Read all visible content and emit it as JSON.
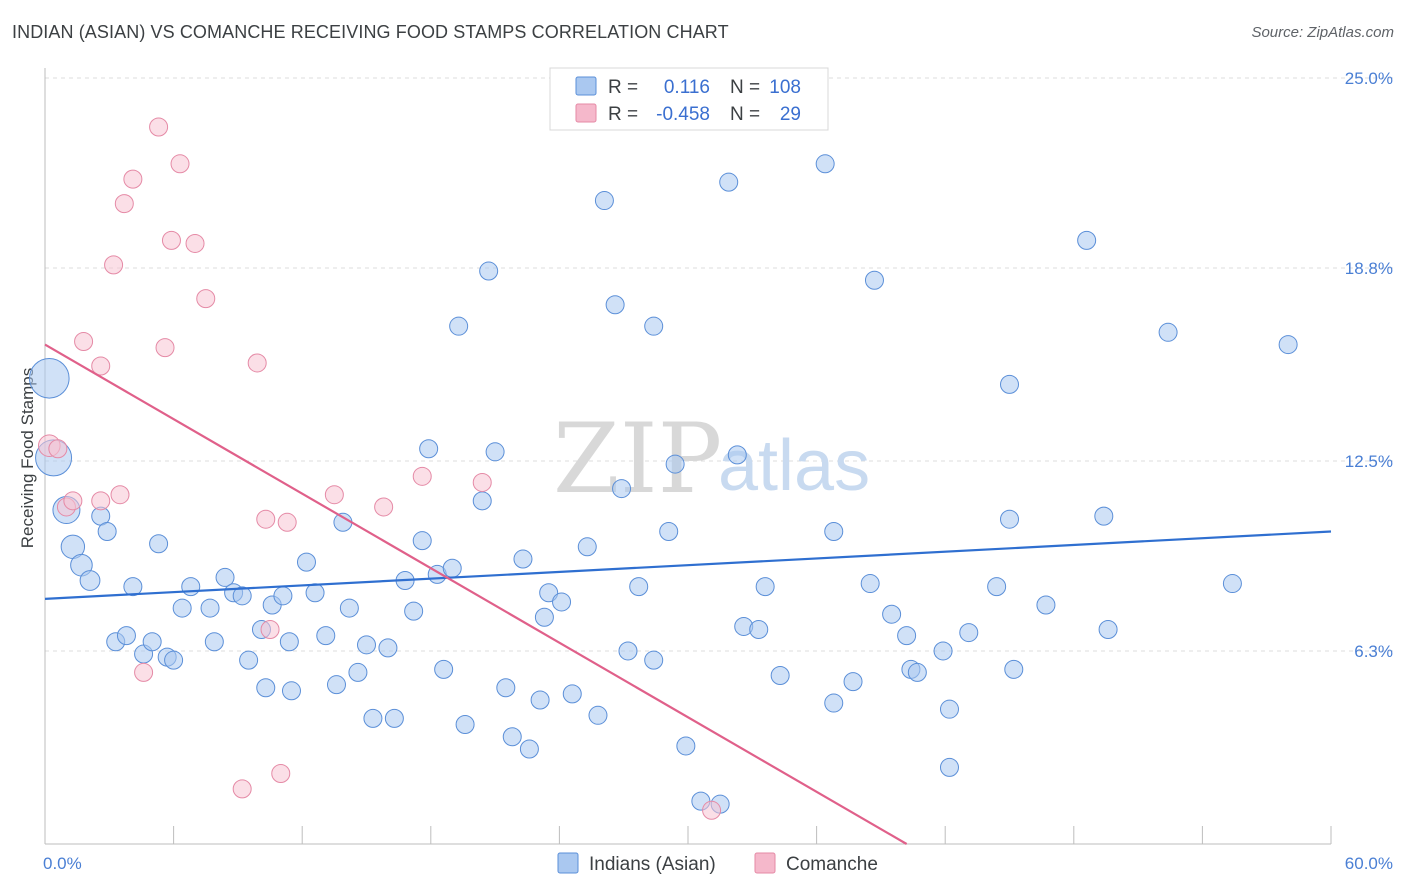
{
  "header": {
    "title": "INDIAN (ASIAN) VS COMANCHE RECEIVING FOOD STAMPS CORRELATION CHART",
    "source": "Source: ZipAtlas.com"
  },
  "watermark": {
    "zip": "ZIP",
    "atlas": "atlas"
  },
  "legend_top": {
    "rows": [
      {
        "r_label": "R =",
        "r_value": "0.116",
        "n_label": "N =",
        "n_value": "108",
        "color": "#aac8f0"
      },
      {
        "r_label": "R =",
        "r_value": "-0.458",
        "n_label": "N =",
        "n_value": "29",
        "color": "#f5b8cb"
      }
    ]
  },
  "colors": {
    "indians_fill": "#aac8f0",
    "indians_stroke": "#5b8fd8",
    "indians_line": "#2f6fd0",
    "comanche_fill": "#f8c4d4",
    "comanche_stroke": "#e58aa6",
    "comanche_line": "#e0608a",
    "grid": "#dcdcdc",
    "axis": "#bdbdbd"
  },
  "chart_data": {
    "type": "scatter",
    "title": "INDIAN (ASIAN) VS COMANCHE RECEIVING FOOD STAMPS CORRELATION CHART",
    "xlabel": "",
    "ylabel": "Receiving Food Stamps",
    "xlim": [
      0,
      60
    ],
    "ylim": [
      0,
      25
    ],
    "x_tick_labels": [
      "0.0%",
      "60.0%"
    ],
    "y_ticks": [
      6.3,
      12.5,
      18.8,
      25.0
    ],
    "y_tick_labels": [
      "6.3%",
      "12.5%",
      "18.8%",
      "25.0%"
    ],
    "grid": true,
    "legend_placement": "top-center",
    "series": [
      {
        "name": "Indians (Asian)",
        "r": 0.116,
        "n": 108,
        "trend": {
          "x": [
            0,
            60
          ],
          "y": [
            8.0,
            10.2
          ]
        },
        "points": [
          [
            0.2,
            15.2,
            2.2
          ],
          [
            0.4,
            12.6,
            2.0
          ],
          [
            1.0,
            10.9,
            1.5
          ],
          [
            1.3,
            9.7,
            1.3
          ],
          [
            1.7,
            9.1,
            1.2
          ],
          [
            2.1,
            8.6,
            1.1
          ],
          [
            2.6,
            10.7,
            1.0
          ],
          [
            2.9,
            10.2,
            1.0
          ],
          [
            3.3,
            6.6,
            1.0
          ],
          [
            3.8,
            6.8,
            1.0
          ],
          [
            4.1,
            8.4,
            1.0
          ],
          [
            4.6,
            6.2,
            1.0
          ],
          [
            5.0,
            6.6,
            1.0
          ],
          [
            5.3,
            9.8,
            1.0
          ],
          [
            5.7,
            6.1,
            1.0
          ],
          [
            6.0,
            6.0,
            1.0
          ],
          [
            6.4,
            7.7,
            1.0
          ],
          [
            6.8,
            8.4,
            1.0
          ],
          [
            7.7,
            7.7,
            1.0
          ],
          [
            7.9,
            6.6,
            1.0
          ],
          [
            8.4,
            8.7,
            1.0
          ],
          [
            8.8,
            8.2,
            1.0
          ],
          [
            9.2,
            8.1,
            1.0
          ],
          [
            9.5,
            6.0,
            1.0
          ],
          [
            10.1,
            7.0,
            1.0
          ],
          [
            10.3,
            5.1,
            1.0
          ],
          [
            10.6,
            7.8,
            1.0
          ],
          [
            11.1,
            8.1,
            1.0
          ],
          [
            11.4,
            6.6,
            1.0
          ],
          [
            11.5,
            5.0,
            1.0
          ],
          [
            12.2,
            9.2,
            1.0
          ],
          [
            12.6,
            8.2,
            1.0
          ],
          [
            13.1,
            6.8,
            1.0
          ],
          [
            13.6,
            5.2,
            1.0
          ],
          [
            13.9,
            10.5,
            1.0
          ],
          [
            14.2,
            7.7,
            1.0
          ],
          [
            14.6,
            5.6,
            1.0
          ],
          [
            15.0,
            6.5,
            1.0
          ],
          [
            15.3,
            4.1,
            1.0
          ],
          [
            16.0,
            6.4,
            1.0
          ],
          [
            16.3,
            4.1,
            1.0
          ],
          [
            16.8,
            8.6,
            1.0
          ],
          [
            17.2,
            7.6,
            1.0
          ],
          [
            17.6,
            9.9,
            1.0
          ],
          [
            17.9,
            12.9,
            1.0
          ],
          [
            18.3,
            8.8,
            1.0
          ],
          [
            18.6,
            5.7,
            1.0
          ],
          [
            19.0,
            9.0,
            1.0
          ],
          [
            19.3,
            16.9,
            1.0
          ],
          [
            19.6,
            3.9,
            1.0
          ],
          [
            20.4,
            11.2,
            1.0
          ],
          [
            20.7,
            18.7,
            1.0
          ],
          [
            21.0,
            12.8,
            1.0
          ],
          [
            21.5,
            5.1,
            1.0
          ],
          [
            21.8,
            3.5,
            1.0
          ],
          [
            22.3,
            9.3,
            1.0
          ],
          [
            22.6,
            3.1,
            1.0
          ],
          [
            23.1,
            4.7,
            1.0
          ],
          [
            23.3,
            7.4,
            1.0
          ],
          [
            23.5,
            8.2,
            1.0
          ],
          [
            24.1,
            7.9,
            1.0
          ],
          [
            24.6,
            4.9,
            1.0
          ],
          [
            25.3,
            9.7,
            1.0
          ],
          [
            25.8,
            4.2,
            1.0
          ],
          [
            26.1,
            21.0,
            1.0
          ],
          [
            26.6,
            17.6,
            1.0
          ],
          [
            26.9,
            11.6,
            1.0
          ],
          [
            27.2,
            6.3,
            1.0
          ],
          [
            27.7,
            8.4,
            1.0
          ],
          [
            28.4,
            16.9,
            1.0
          ],
          [
            28.4,
            6.0,
            1.0
          ],
          [
            29.1,
            10.2,
            1.0
          ],
          [
            29.4,
            12.4,
            1.0
          ],
          [
            29.9,
            3.2,
            1.0
          ],
          [
            30.6,
            1.4,
            1.0
          ],
          [
            31.5,
            1.3,
            1.0
          ],
          [
            31.9,
            21.6,
            1.0
          ],
          [
            32.3,
            12.7,
            1.0
          ],
          [
            32.6,
            7.1,
            1.0
          ],
          [
            33.3,
            7.0,
            1.0
          ],
          [
            33.6,
            8.4,
            1.0
          ],
          [
            34.3,
            5.5,
            1.0
          ],
          [
            36.4,
            22.2,
            1.0
          ],
          [
            36.8,
            10.2,
            1.0
          ],
          [
            36.8,
            4.6,
            1.0
          ],
          [
            37.7,
            5.3,
            1.0
          ],
          [
            38.5,
            8.5,
            1.0
          ],
          [
            38.7,
            18.4,
            1.0
          ],
          [
            39.5,
            7.5,
            1.0
          ],
          [
            40.2,
            6.8,
            1.0
          ],
          [
            40.4,
            5.7,
            1.0
          ],
          [
            40.7,
            5.6,
            1.0
          ],
          [
            41.9,
            6.3,
            1.0
          ],
          [
            42.2,
            4.4,
            1.0
          ],
          [
            42.2,
            2.5,
            1.0
          ],
          [
            43.1,
            6.9,
            1.0
          ],
          [
            44.4,
            8.4,
            1.0
          ],
          [
            45.0,
            15.0,
            1.0
          ],
          [
            45.0,
            10.6,
            1.0
          ],
          [
            45.2,
            5.7,
            1.0
          ],
          [
            46.7,
            7.8,
            1.0
          ],
          [
            48.6,
            19.7,
            1.0
          ],
          [
            49.4,
            10.7,
            1.0
          ],
          [
            49.6,
            7.0,
            1.0
          ],
          [
            52.4,
            16.7,
            1.0
          ],
          [
            55.4,
            8.5,
            1.0
          ],
          [
            58.0,
            16.3,
            1.0
          ]
        ]
      },
      {
        "name": "Comanche",
        "r": -0.458,
        "n": 29,
        "trend": {
          "x": [
            0,
            40.2
          ],
          "y": [
            16.3,
            0
          ]
        },
        "points": [
          [
            0.2,
            13.0,
            1.2
          ],
          [
            0.6,
            12.9,
            1.0
          ],
          [
            1.0,
            11.0,
            1.0
          ],
          [
            1.3,
            11.2,
            1.0
          ],
          [
            1.8,
            16.4,
            1.0
          ],
          [
            2.6,
            11.2,
            1.0
          ],
          [
            2.6,
            15.6,
            1.0
          ],
          [
            3.2,
            18.9,
            1.0
          ],
          [
            3.5,
            11.4,
            1.0
          ],
          [
            3.7,
            20.9,
            1.0
          ],
          [
            4.1,
            21.7,
            1.0
          ],
          [
            4.6,
            5.6,
            1.0
          ],
          [
            5.3,
            23.4,
            1.0
          ],
          [
            5.6,
            16.2,
            1.0
          ],
          [
            5.9,
            19.7,
            1.0
          ],
          [
            6.3,
            22.2,
            1.0
          ],
          [
            7.0,
            19.6,
            1.0
          ],
          [
            7.5,
            17.8,
            1.0
          ],
          [
            9.2,
            1.8,
            1.0
          ],
          [
            9.9,
            15.7,
            1.0
          ],
          [
            10.3,
            10.6,
            1.0
          ],
          [
            10.5,
            7.0,
            1.0
          ],
          [
            11.0,
            2.3,
            1.0
          ],
          [
            11.3,
            10.5,
            1.0
          ],
          [
            13.5,
            11.4,
            1.0
          ],
          [
            15.8,
            11.0,
            1.0
          ],
          [
            17.6,
            12.0,
            1.0
          ],
          [
            20.4,
            11.8,
            1.0
          ],
          [
            31.1,
            1.1,
            1.0
          ]
        ]
      }
    ]
  }
}
